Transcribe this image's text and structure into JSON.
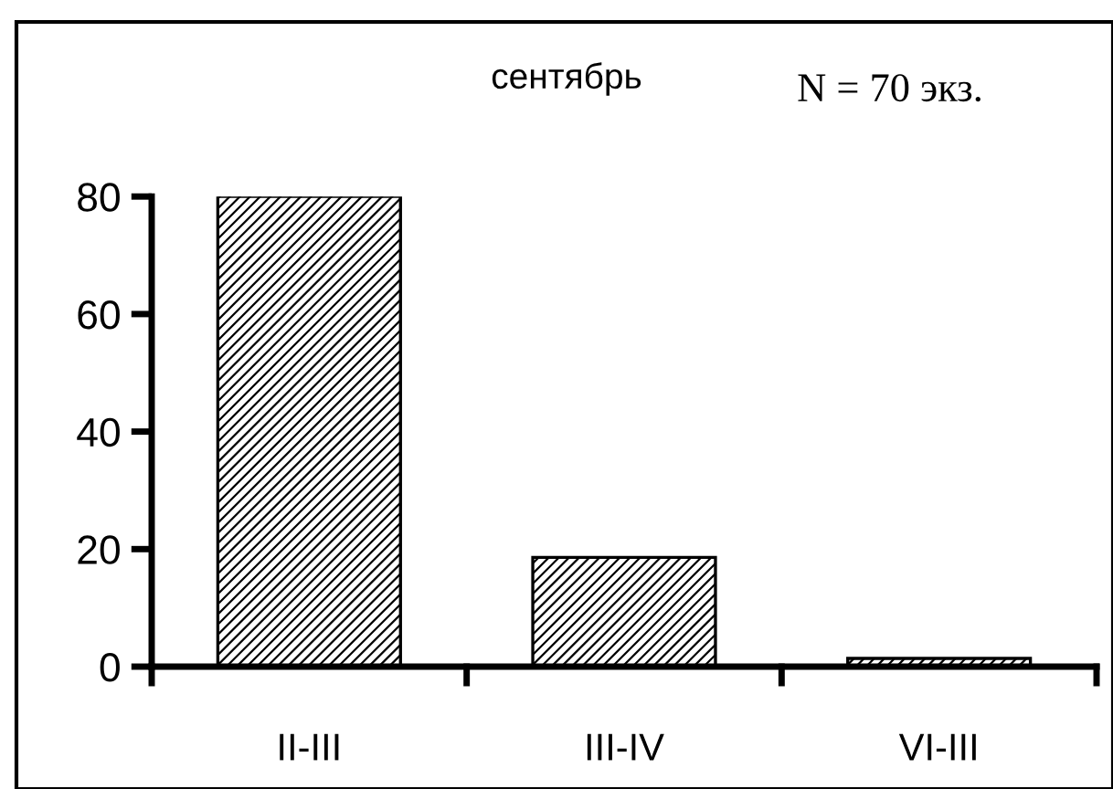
{
  "chart_data": {
    "type": "bar",
    "title": "сентябрь",
    "annotations": [
      "N = 70 экз."
    ],
    "categories": [
      "II-III",
      "III-IV",
      "VI-III"
    ],
    "values": [
      80,
      18.6,
      1.4
    ],
    "color": "#000000",
    "ylim": [
      0,
      80
    ],
    "yticks": [
      0,
      20,
      40,
      60,
      80
    ],
    "grid": false,
    "legend": false
  }
}
